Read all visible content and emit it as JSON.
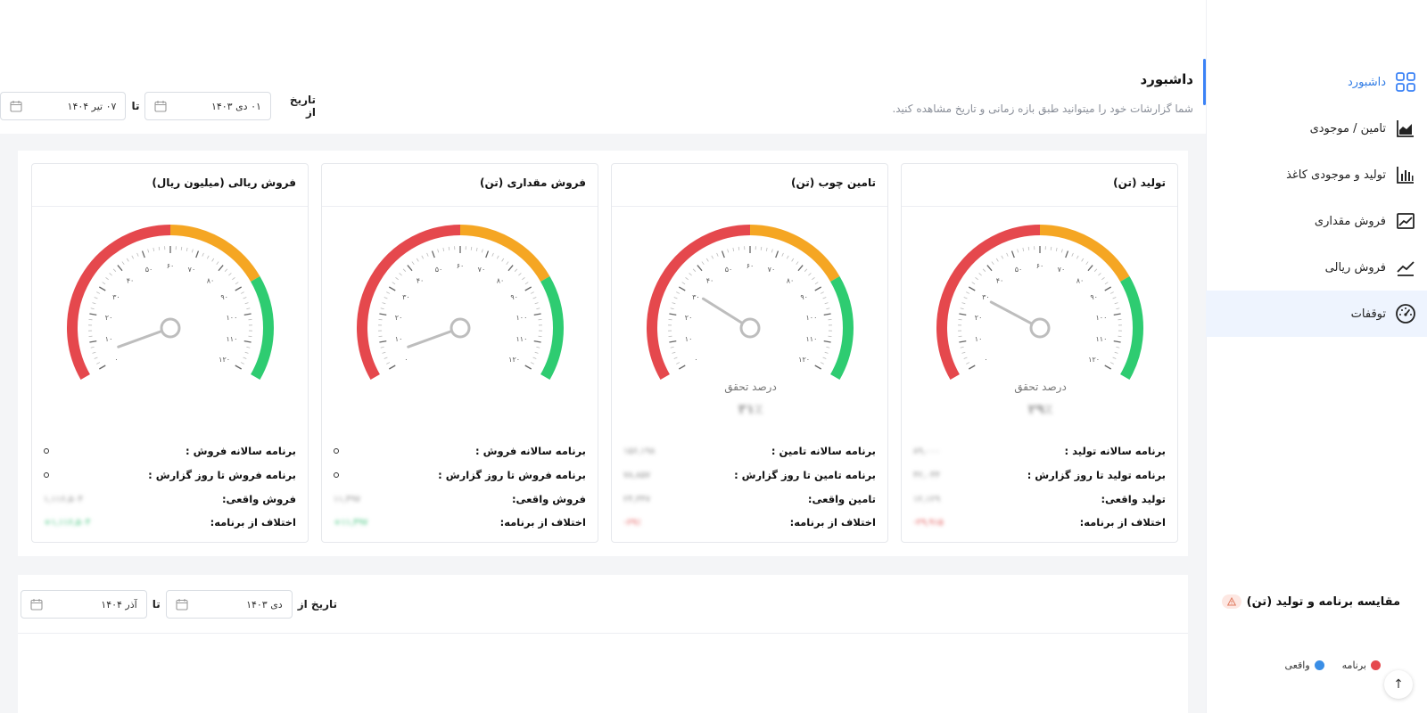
{
  "header": {
    "title": "داشبورد",
    "subtitle": "شما گزارشات خود را میتوانید طبق بازه زمانی و تاریخ مشاهده کنید."
  },
  "sidebar": {
    "items": [
      {
        "label": "داشبورد",
        "icon": "grid-icon",
        "active": true
      },
      {
        "label": "تامین / موجودی",
        "icon": "area-chart-icon"
      },
      {
        "label": "تولید و موجودی کاغذ",
        "icon": "bar-chart-icon"
      },
      {
        "label": "فروش مقداری",
        "icon": "line-chart-box-icon"
      },
      {
        "label": "فروش ریالی",
        "icon": "trend-line-icon"
      },
      {
        "label": "توقفات",
        "icon": "speedometer-icon",
        "selected": true
      }
    ]
  },
  "top_filter": {
    "from_label": "تاریخ از",
    "from_value": "۰۱ دی ۱۴۰۳",
    "to_label": "تا",
    "to_value": "۰۷ تیر ۱۴۰۴"
  },
  "gauge_tick_labels": [
    "۰",
    "۱۰",
    "۲۰",
    "۳۰",
    "۴۰",
    "۵۰",
    "۶۰",
    "۷۰",
    "۸۰",
    "۹۰",
    "۱۰۰",
    "۱۱۰",
    "۱۲۰"
  ],
  "cards": [
    {
      "title": "تولید (تن)",
      "needle_value": 29,
      "pct_label": "درصد تحقق",
      "pct_value": "۲۹٪",
      "rows": [
        {
          "label": "برنامه سالانه تولید :",
          "value": "۸۹,۰۰۰"
        },
        {
          "label": "برنامه تولید تا روز گزارش :",
          "value": "۴۲,۰۴۴"
        },
        {
          "label": "تولید واقعی:",
          "value": "۱۲,۱۲۹"
        },
        {
          "label": "اختلاف از برنامه:",
          "value": "-۲۹,۹۱۵"
        }
      ]
    },
    {
      "title": "تامین چوب (تن)",
      "needle_value": 31,
      "pct_label": "درصد تحقق",
      "pct_value": "۳۱٪",
      "rows": [
        {
          "label": "برنامه سالانه تامین :",
          "value": "۱۵۶,۱۹۸"
        },
        {
          "label": "برنامه تامین تا روز گزارش :",
          "value": "۷۸,۸۵۷"
        },
        {
          "label": "تامین واقعی:",
          "value": "۲۴,۳۴۷"
        },
        {
          "label": "اختلاف از برنامه:",
          "value": "-۶۹٪"
        }
      ]
    },
    {
      "title": "فروش مقداری (تن)",
      "needle_value": 5,
      "pct_label": "",
      "pct_value": "",
      "rows": [
        {
          "label": "برنامه سالانه فروش :",
          "value": "0"
        },
        {
          "label": "برنامه فروش تا روز گزارش :",
          "value": "0"
        },
        {
          "label": "فروش واقعی:",
          "value": "۱۱,۴۹۷"
        },
        {
          "label": "اختلاف از برنامه:",
          "value": "+۱۱,۴۹۷"
        }
      ]
    },
    {
      "title": "فروش ریالی (میلیون ریال)",
      "needle_value": 5,
      "pct_label": "",
      "pct_value": "",
      "rows": [
        {
          "label": "برنامه سالانه فروش :",
          "value": "0"
        },
        {
          "label": "برنامه فروش تا روز گزارش :",
          "value": "0"
        },
        {
          "label": "فروش واقعی:",
          "value": "۱,۱۱۶,۵۰۴"
        },
        {
          "label": "اختلاف از برنامه:",
          "value": "+۱,۱۱۶,۵۰۴"
        }
      ]
    }
  ],
  "comparison": {
    "title": "مقایسه برنامه و تولید (تن)",
    "from_label": "تاریخ از",
    "from_value": "دی ۱۴۰۳",
    "to_label": "تا",
    "to_value": "آذر ۱۴۰۴",
    "legend": [
      {
        "name": "برنامه",
        "color": "#e5484d"
      },
      {
        "name": "واقعی",
        "color": "#3a8ee6"
      }
    ]
  },
  "colors": {
    "accent": "#2f7be5",
    "gauge_red": "#e5484d",
    "gauge_orange": "#f5a623",
    "gauge_green": "#2ecc71"
  }
}
